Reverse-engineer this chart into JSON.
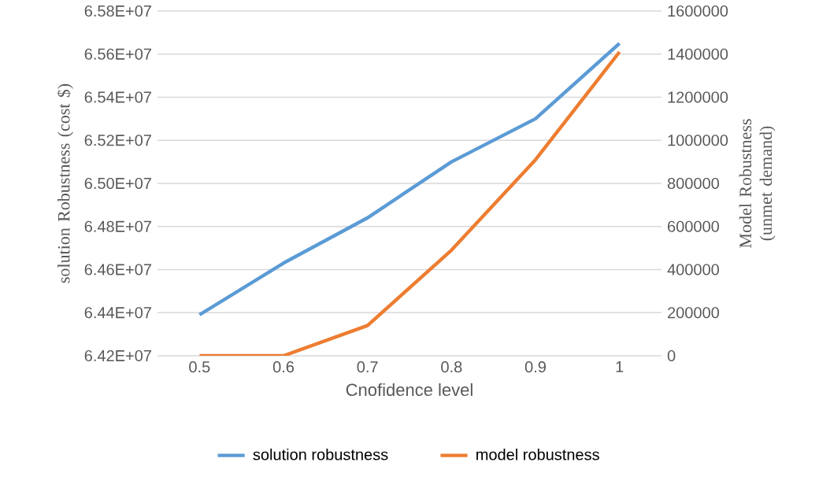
{
  "chart_data": {
    "type": "line",
    "categories": [
      "0.5",
      "0.6",
      "0.7",
      "0.8",
      "0.9",
      "1"
    ],
    "xlabel": "Cnofidence level",
    "ylabel": "solution Robustness (cost $)",
    "y2label": "Model Robustness (unmet demand)",
    "series": [
      {
        "name": "solution robustness",
        "color": "#5b9bd5",
        "values": [
          64390000,
          64630000,
          64840000,
          65100000,
          65300000,
          65650000
        ]
      },
      {
        "name": "model robustness",
        "color": "#ed7d31",
        "axis": "y2",
        "values": [
          0,
          0,
          140000,
          490000,
          910000,
          1410000
        ]
      }
    ],
    "ylim": [
      64200000,
      65800000
    ],
    "yticks": [
      {
        "value": 64200000,
        "label": "6.42E+07"
      },
      {
        "value": 64400000,
        "label": "6.44E+07"
      },
      {
        "value": 64600000,
        "label": "6.46E+07"
      },
      {
        "value": 64800000,
        "label": "6.48E+07"
      },
      {
        "value": 65000000,
        "label": "6.50E+07"
      },
      {
        "value": 65200000,
        "label": "6.52E+07"
      },
      {
        "value": 65400000,
        "label": "6.54E+07"
      },
      {
        "value": 65600000,
        "label": "6.56E+07"
      },
      {
        "value": 65800000,
        "label": "6.58E+07"
      }
    ],
    "y2lim": [
      0,
      1600000
    ],
    "y2ticks": [
      0,
      200000,
      400000,
      600000,
      800000,
      1000000,
      1200000,
      1400000,
      1600000
    ],
    "grid": "y",
    "legend": "bottom"
  }
}
